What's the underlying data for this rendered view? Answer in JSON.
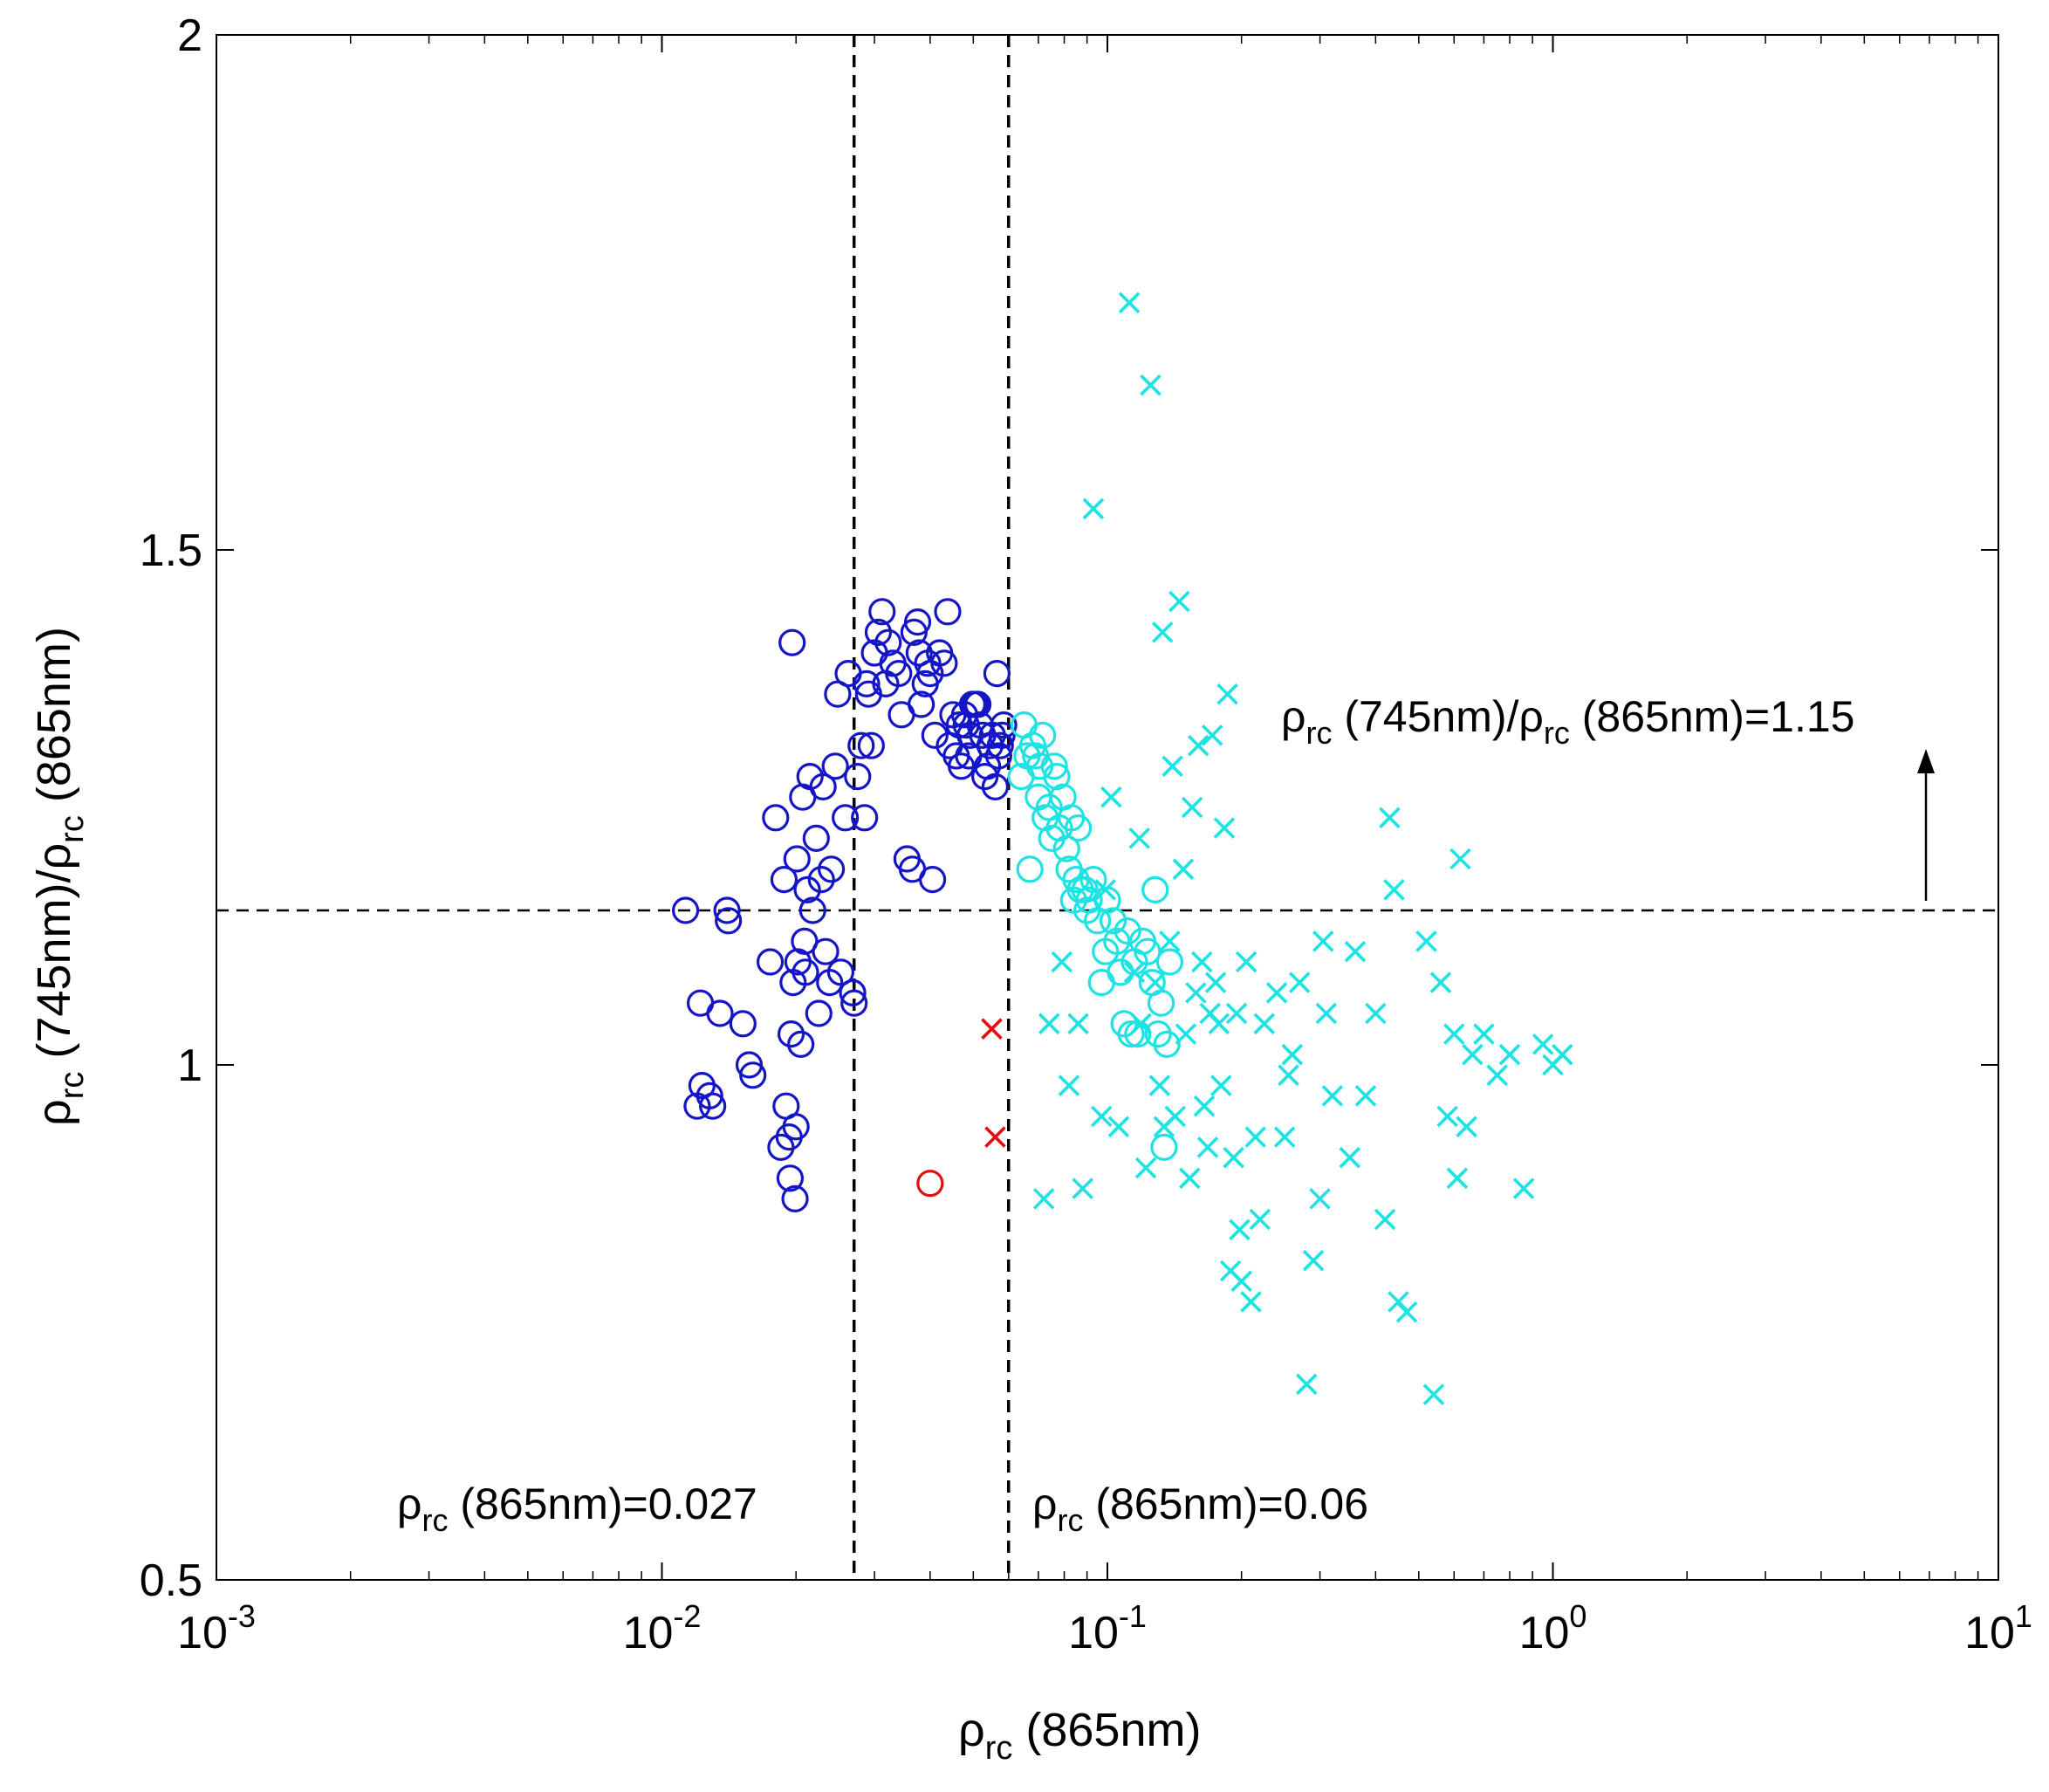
{
  "chart_data": {
    "type": "scatter",
    "title": "",
    "xscale": "log",
    "xlim": [
      0.001,
      10
    ],
    "ylim": [
      0.5,
      2
    ],
    "grid": false,
    "xlabel": {
      "base": "ρ",
      "sub": "rc",
      "rest": " (865nm)"
    },
    "ylabel": {
      "p1": "ρ",
      "s1": "rc",
      "p2": " (745nm)/",
      "p3": "ρ",
      "s2": "rc",
      "p4": " (865nm)"
    },
    "x_ticks": [
      {
        "value": 0.001,
        "base": "10",
        "exp": "-3"
      },
      {
        "value": 0.01,
        "base": "10",
        "exp": "-2"
      },
      {
        "value": 0.1,
        "base": "10",
        "exp": "-1"
      },
      {
        "value": 1,
        "base": "10",
        "exp": "0"
      },
      {
        "value": 10,
        "base": "10",
        "exp": "1"
      }
    ],
    "y_ticks": [
      {
        "value": 0.5,
        "label": "0.5"
      },
      {
        "value": 1,
        "label": "1"
      },
      {
        "value": 1.5,
        "label": "1.5"
      },
      {
        "value": 2,
        "label": "2"
      }
    ],
    "thresholds": {
      "x": [
        0.027,
        0.06
      ],
      "y": 1.15
    },
    "annotations": {
      "y_threshold": {
        "p1": "ρ",
        "s1": "rc",
        "p2": " (745nm)/",
        "p3": "ρ",
        "s2": "rc",
        "p4": " (865nm)=1.15"
      },
      "x_threshold_1": {
        "p1": "ρ",
        "s1": "rc",
        "p2": " (865nm)=0.027"
      },
      "x_threshold_2": {
        "p1": "ρ",
        "s1": "rc",
        "p2": " (865nm)=0.06"
      }
    },
    "colors": {
      "blue": "#1515c8",
      "cyan": "#1fe3e3",
      "red": "#e01010",
      "black": "#000000"
    },
    "series": [
      {
        "name": "blue circles",
        "marker": "circle",
        "color": "blue",
        "x": [
          0.0113,
          0.012,
          0.0122,
          0.0123,
          0.0128,
          0.013,
          0.0135,
          0.014,
          0.0141,
          0.0152,
          0.0157,
          0.016,
          0.0175,
          0.018,
          0.0185,
          0.0188,
          0.019,
          0.0193,
          0.0194,
          0.0195,
          0.0196,
          0.0197,
          0.0199,
          0.02,
          0.0201,
          0.0202,
          0.0205,
          0.0207,
          0.0209,
          0.021,
          0.0212,
          0.0215,
          0.0218,
          0.0222,
          0.0225,
          0.0228,
          0.023,
          0.0233,
          0.0238,
          0.024,
          0.0245,
          0.0248,
          0.0252,
          0.0258,
          0.0262,
          0.0268,
          0.027,
          0.0275,
          0.028,
          0.0285,
          0.0288,
          0.0291,
          0.0295,
          0.03,
          0.0306,
          0.0312,
          0.0318,
          0.0322,
          0.033,
          0.034,
          0.0345,
          0.0355,
          0.0365,
          0.0368,
          0.0375,
          0.0378,
          0.0382,
          0.039,
          0.0395,
          0.04,
          0.0405,
          0.041,
          0.042,
          0.043,
          0.0438,
          0.0442,
          0.045,
          0.0458,
          0.0465,
          0.047,
          0.0478,
          0.0482,
          0.0488,
          0.0492,
          0.0498,
          0.0505,
          0.0512,
          0.0518,
          0.0525,
          0.0531,
          0.0538,
          0.0545,
          0.0552,
          0.056,
          0.0565,
          0.057,
          0.0575,
          0.058,
          0.0585
        ],
        "y": [
          1.15,
          0.96,
          1.06,
          0.98,
          0.97,
          0.96,
          1.05,
          1.15,
          1.14,
          1.04,
          1.0,
          0.99,
          1.1,
          1.24,
          0.92,
          1.18,
          0.96,
          0.93,
          0.89,
          1.03,
          1.41,
          1.08,
          0.87,
          0.94,
          1.2,
          1.1,
          1.02,
          1.26,
          1.12,
          1.09,
          1.17,
          1.28,
          1.15,
          1.22,
          1.05,
          1.18,
          1.27,
          1.11,
          1.08,
          1.19,
          1.29,
          1.36,
          1.09,
          1.24,
          1.38,
          1.07,
          1.06,
          1.28,
          1.31,
          1.24,
          1.37,
          1.36,
          1.31,
          1.4,
          1.42,
          1.44,
          1.37,
          1.41,
          1.39,
          1.38,
          1.34,
          1.2,
          1.19,
          1.42,
          1.43,
          1.4,
          1.35,
          1.37,
          1.39,
          1.38,
          1.18,
          1.32,
          1.4,
          1.39,
          1.44,
          1.31,
          1.34,
          1.3,
          1.33,
          1.29,
          1.34,
          1.33,
          1.3,
          1.32,
          1.35,
          1.35,
          1.35,
          1.33,
          1.32,
          1.28,
          1.29,
          1.31,
          1.32,
          1.27,
          1.38,
          1.3,
          1.31,
          1.32,
          1.33
        ]
      },
      {
        "name": "cyan circles",
        "marker": "circle",
        "color": "cyan",
        "x": [
          0.064,
          0.065,
          0.066,
          0.067,
          0.068,
          0.069,
          0.07,
          0.0705,
          0.0715,
          0.0725,
          0.074,
          0.075,
          0.076,
          0.077,
          0.078,
          0.0795,
          0.081,
          0.082,
          0.083,
          0.084,
          0.085,
          0.086,
          0.087,
          0.089,
          0.09,
          0.091,
          0.093,
          0.095,
          0.097,
          0.099,
          0.1,
          0.103,
          0.105,
          0.107,
          0.109,
          0.111,
          0.113,
          0.115,
          0.117,
          0.12,
          0.123,
          0.126,
          0.128,
          0.13,
          0.132,
          0.134,
          0.136,
          0.138
        ],
        "y": [
          1.28,
          1.33,
          1.3,
          1.19,
          1.31,
          1.3,
          1.26,
          1.29,
          1.32,
          1.24,
          1.25,
          1.22,
          1.29,
          1.28,
          1.23,
          1.26,
          1.21,
          1.19,
          1.24,
          1.16,
          1.18,
          1.23,
          1.17,
          1.17,
          1.15,
          1.16,
          1.18,
          1.14,
          1.08,
          1.11,
          1.16,
          1.14,
          1.12,
          1.09,
          1.04,
          1.13,
          1.03,
          1.1,
          1.03,
          1.12,
          1.11,
          1.08,
          1.17,
          1.03,
          1.06,
          0.92,
          1.02,
          1.1
        ]
      },
      {
        "name": "cyan crosses",
        "marker": "x",
        "color": "cyan",
        "x": [
          0.072,
          0.074,
          0.079,
          0.082,
          0.086,
          0.088,
          0.093,
          0.097,
          0.099,
          0.102,
          0.106,
          0.112,
          0.115,
          0.118,
          0.119,
          0.122,
          0.125,
          0.128,
          0.131,
          0.133,
          0.134,
          0.138,
          0.14,
          0.142,
          0.145,
          0.148,
          0.15,
          0.153,
          0.155,
          0.158,
          0.16,
          0.163,
          0.165,
          0.168,
          0.17,
          0.172,
          0.175,
          0.178,
          0.18,
          0.183,
          0.186,
          0.189,
          0.192,
          0.195,
          0.198,
          0.2,
          0.205,
          0.21,
          0.215,
          0.22,
          0.225,
          0.24,
          0.25,
          0.255,
          0.26,
          0.27,
          0.28,
          0.29,
          0.3,
          0.305,
          0.31,
          0.32,
          0.35,
          0.36,
          0.38,
          0.4,
          0.42,
          0.43,
          0.44,
          0.45,
          0.47,
          0.52,
          0.54,
          0.56,
          0.58,
          0.6,
          0.61,
          0.62,
          0.64,
          0.66,
          0.7,
          0.75,
          0.8,
          0.86,
          0.95,
          1.0,
          1.05
        ],
        "y": [
          0.87,
          1.04,
          1.1,
          0.98,
          1.04,
          0.88,
          1.54,
          0.95,
          1.17,
          1.26,
          0.94,
          1.74,
          1.09,
          1.22,
          1.04,
          0.9,
          1.66,
          1.08,
          0.98,
          1.42,
          0.94,
          1.12,
          1.29,
          0.95,
          1.45,
          1.19,
          1.03,
          0.89,
          1.25,
          1.07,
          1.31,
          1.1,
          0.96,
          0.92,
          1.05,
          1.32,
          1.08,
          1.04,
          0.98,
          1.23,
          1.36,
          0.8,
          0.91,
          1.05,
          0.84,
          0.79,
          1.1,
          0.77,
          0.93,
          0.85,
          1.04,
          1.07,
          0.93,
          0.99,
          1.01,
          1.08,
          0.69,
          0.81,
          0.87,
          1.12,
          1.05,
          0.97,
          0.91,
          1.11,
          0.97,
          1.05,
          0.85,
          1.24,
          1.17,
          0.77,
          0.76,
          1.12,
          0.68,
          1.08,
          0.95,
          1.03,
          0.89,
          1.2,
          0.94,
          1.01,
          1.03,
          0.99,
          1.01,
          0.88,
          1.02,
          1.0,
          1.01
        ]
      },
      {
        "name": "red circle",
        "marker": "circle",
        "color": "red",
        "x": [
          0.04
        ],
        "y": [
          0.885
        ]
      },
      {
        "name": "red crosses",
        "marker": "x",
        "color": "red",
        "x": [
          0.055,
          0.056
        ],
        "y": [
          1.035,
          0.93
        ]
      }
    ]
  }
}
